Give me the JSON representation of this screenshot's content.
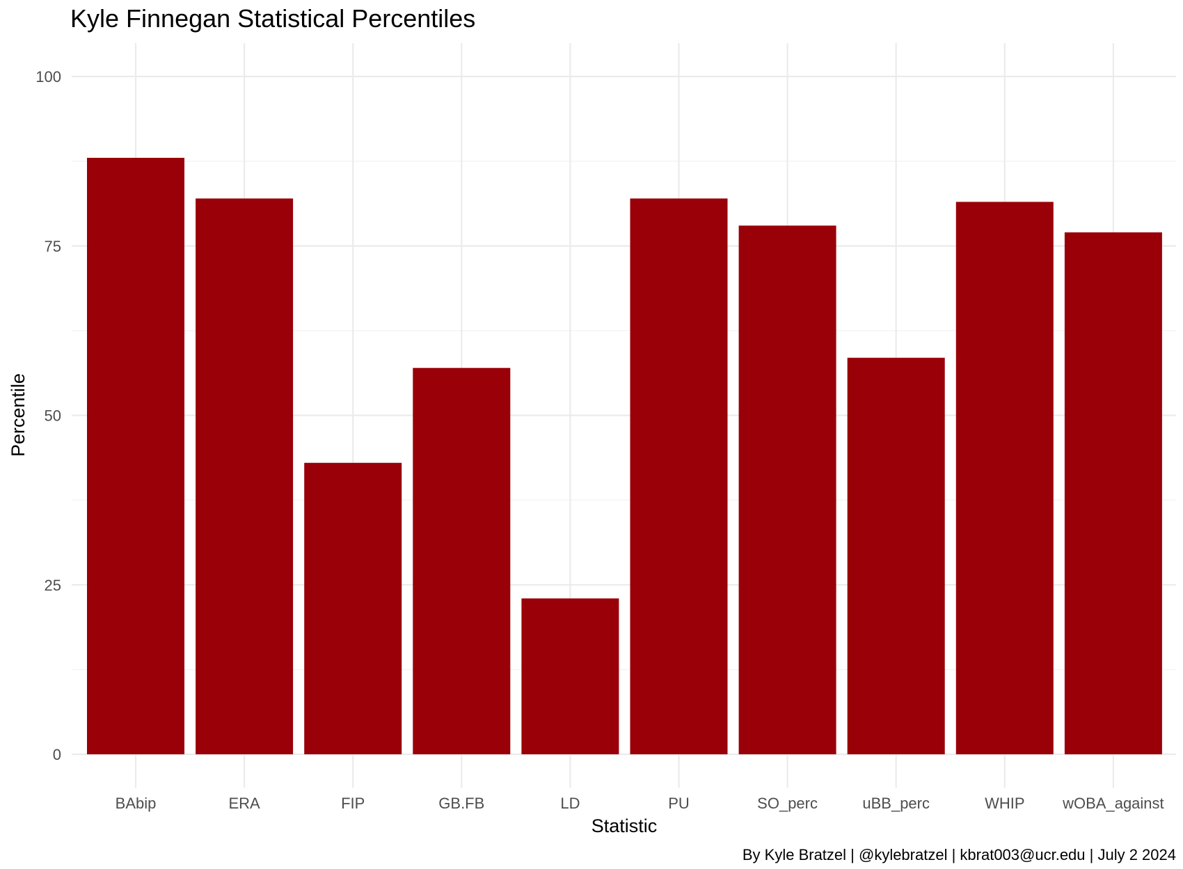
{
  "chart_data": {
    "type": "bar",
    "title": "Kyle Finnegan Statistical Percentiles",
    "xlabel": "Statistic",
    "ylabel": "Percentile",
    "caption": "By Kyle Bratzel | @kylebratzel | kbrat003@ucr.edu | July 2 2024",
    "categories": [
      "BAbip",
      "ERA",
      "FIP",
      "GB.FB",
      "LD",
      "PU",
      "SO_perc",
      "uBB_perc",
      "WHIP",
      "wOBA_against"
    ],
    "values": [
      88,
      82,
      43,
      57,
      23,
      82,
      78,
      58.5,
      81.5,
      77
    ],
    "ylim": [
      0,
      100
    ],
    "yticks": [
      "0",
      "25",
      "50",
      "75",
      "100"
    ],
    "bar_color": "#990008",
    "grid": true,
    "legend": "none"
  }
}
